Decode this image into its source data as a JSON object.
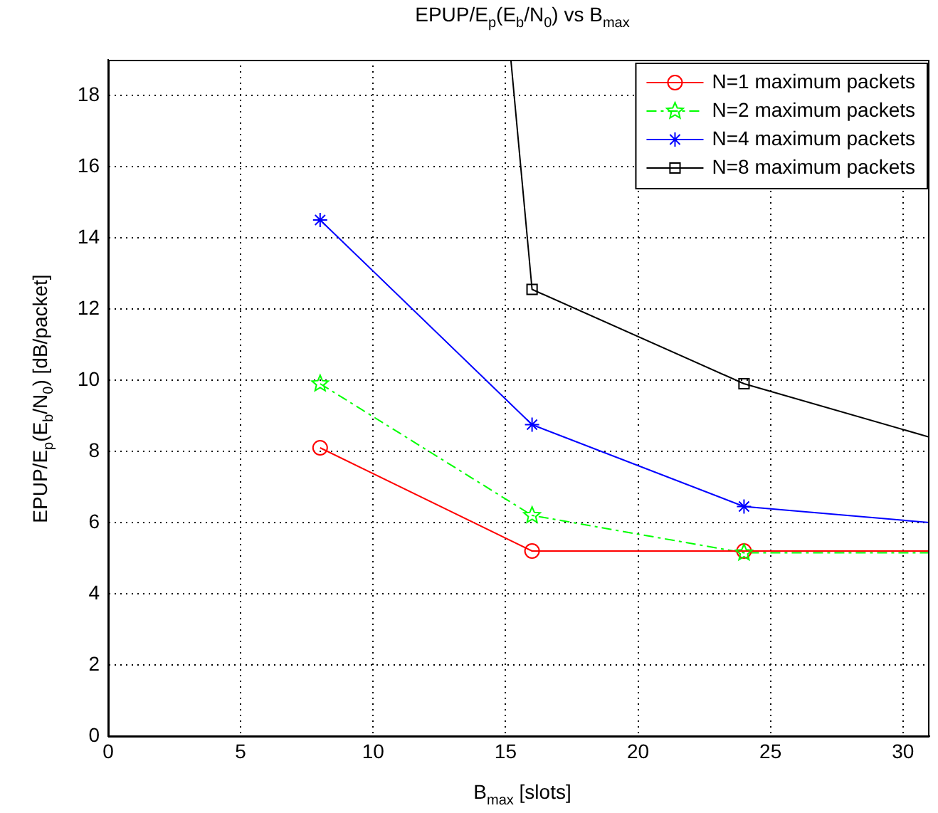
{
  "chart_data": {
    "type": "line",
    "title": "EPUP/E$_{p}$(E$_{b}$/N$_{0}$) vs B$_{max}$",
    "xlabel": "B$_{max}$ [slots]",
    "ylabel": "EPUP/E$_{p}$(E$_{b}$/N$_{0}$) [dB/packet]",
    "xlim": [
      0,
      31
    ],
    "ylim": [
      0,
      19
    ],
    "xticks": [
      0,
      5,
      10,
      15,
      20,
      25,
      30
    ],
    "yticks": [
      0,
      2,
      4,
      6,
      8,
      10,
      12,
      14,
      16,
      18
    ],
    "grid": true,
    "legend": "top right",
    "series": [
      {
        "name": "N=1 maximum packets",
        "color": "#ff0000",
        "marker": "circle",
        "line_style": "solid",
        "x": [
          8,
          16,
          24,
          31
        ],
        "values": [
          8.1,
          5.2,
          5.2,
          5.2
        ]
      },
      {
        "name": "N=2 maximum packets",
        "color": "#00ff00",
        "marker": "star",
        "line_style": "dashed",
        "x": [
          8,
          16,
          24,
          31
        ],
        "values": [
          9.9,
          6.2,
          5.15,
          5.15
        ]
      },
      {
        "name": "N=4 maximum packets",
        "color": "#0000ff",
        "marker": "cross",
        "line_style": "solid",
        "x": [
          8,
          16,
          24,
          31
        ],
        "values": [
          14.5,
          8.75,
          6.45,
          6.0
        ]
      },
      {
        "name": "N=8 maximum packets",
        "color": "#000000",
        "marker": "square",
        "line_style": "solid",
        "x": [
          15.2,
          16,
          24,
          31
        ],
        "values": [
          19,
          12.55,
          9.9,
          8.4
        ]
      }
    ]
  }
}
